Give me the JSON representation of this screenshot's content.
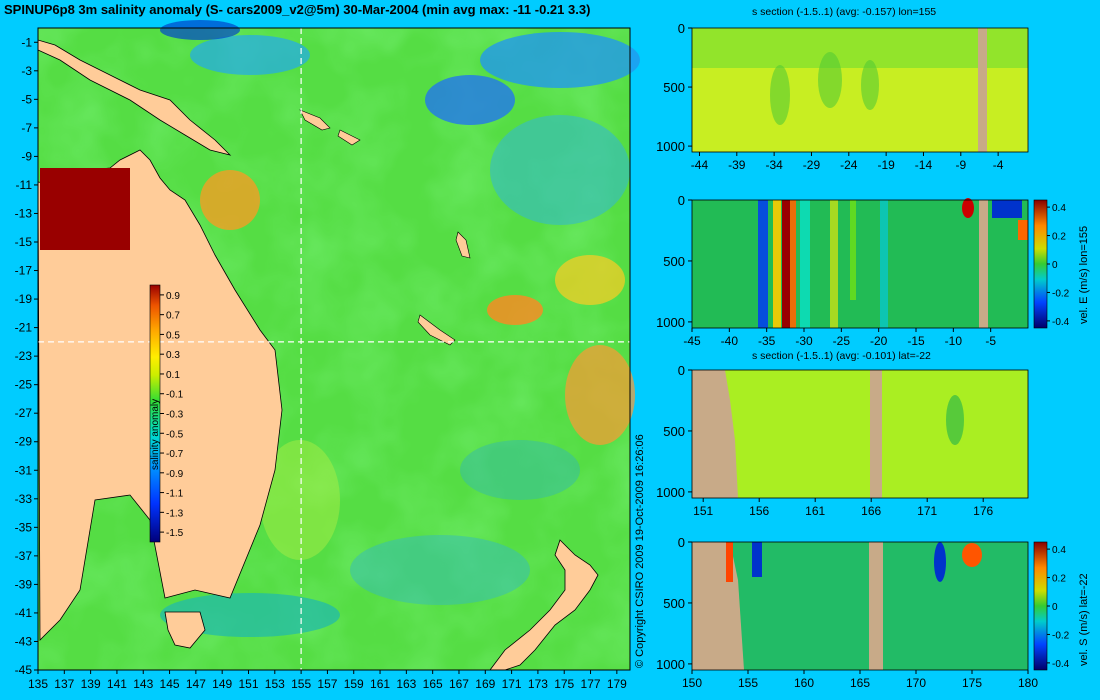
{
  "title": "SPINUP6p8 3m salinity anomaly (S- cars2009_v2@5m) 30-Mar-2004 (min avg max: -11 -0.21 3.3)",
  "copyright": "© Copyright CSIRO 2009   19-Oct-2009 16:26:06",
  "colors": {
    "background": "#00ccff",
    "land": "#ffcc99",
    "section_land": "#c8aa88"
  },
  "chart_data": [
    {
      "type": "heatmap",
      "name": "map",
      "title": "SPINUP6p8 3m salinity anomaly (S- cars2009_v2@5m) 30-Mar-2004 (min avg max: -11 -0.21 3.3)",
      "xlim": [
        135,
        180
      ],
      "ylim": [
        -45,
        0
      ],
      "x_ticks": [
        135,
        137,
        139,
        141,
        143,
        145,
        147,
        149,
        151,
        153,
        155,
        157,
        159,
        161,
        163,
        165,
        167,
        169,
        171,
        173,
        175,
        177,
        179
      ],
      "y_ticks": [
        -1,
        -3,
        -5,
        -7,
        -9,
        -11,
        -13,
        -15,
        -17,
        -19,
        -21,
        -23,
        -25,
        -27,
        -29,
        -31,
        -33,
        -35,
        -37,
        -39,
        -41,
        -43,
        -45
      ],
      "section_lines": {
        "lon": 155,
        "lat": -22
      },
      "colorbar": {
        "label": "salinity anomaly",
        "ticks": [
          "0.9",
          "0.7",
          "0.5",
          "0.3",
          "0.1",
          "-0.1",
          "-0.3",
          "-0.5",
          "-0.7",
          "-0.9",
          "-1.1",
          "-1.3",
          "-1.5"
        ],
        "range": [
          -1.6,
          1.0
        ]
      }
    },
    {
      "type": "heatmap",
      "name": "s-section-lon",
      "title": "s section (-1.5..1) (avg: -0.157) lon=155",
      "xlim": [
        -45,
        0
      ],
      "ylim": [
        1050,
        0
      ],
      "x_ticks": [
        "-44",
        "-39",
        "-34",
        "-29",
        "-24",
        "-19",
        "-14",
        "-9",
        "-4"
      ],
      "y_ticks": [
        "0",
        "500",
        "1000"
      ]
    },
    {
      "type": "heatmap",
      "name": "vel-e-section",
      "xlim": [
        -45,
        0
      ],
      "ylim": [
        1050,
        0
      ],
      "x_ticks": [
        "-45",
        "-40",
        "-35",
        "-30",
        "-25",
        "-20",
        "-15",
        "-10",
        "-5"
      ],
      "y_ticks": [
        "0",
        "500",
        "1000"
      ],
      "colorbar": {
        "label": "vel. E (m/s) lon=155",
        "ticks": [
          "0.4",
          "0.2",
          "0",
          "-0.2",
          "-0.4"
        ],
        "range": [
          -0.45,
          0.45
        ]
      }
    },
    {
      "type": "heatmap",
      "name": "s-section-lat",
      "title": "s section (-1.5..1) (avg: -0.101) lat=-22",
      "xlim": [
        150,
        180
      ],
      "ylim": [
        1050,
        0
      ],
      "x_ticks": [
        "151",
        "156",
        "161",
        "166",
        "171",
        "176"
      ],
      "y_ticks": [
        "0",
        "500",
        "1000"
      ]
    },
    {
      "type": "heatmap",
      "name": "vel-s-section",
      "xlim": [
        150,
        180
      ],
      "ylim": [
        1050,
        0
      ],
      "x_ticks": [
        "150",
        "155",
        "160",
        "165",
        "170",
        "175",
        "180"
      ],
      "y_ticks": [
        "0",
        "500",
        "1000"
      ],
      "colorbar": {
        "label": "vel. S (m/s) lat=-22",
        "ticks": [
          "0.4",
          "0.2",
          "0",
          "-0.2",
          "-0.4"
        ],
        "range": [
          -0.45,
          0.45
        ]
      }
    }
  ]
}
